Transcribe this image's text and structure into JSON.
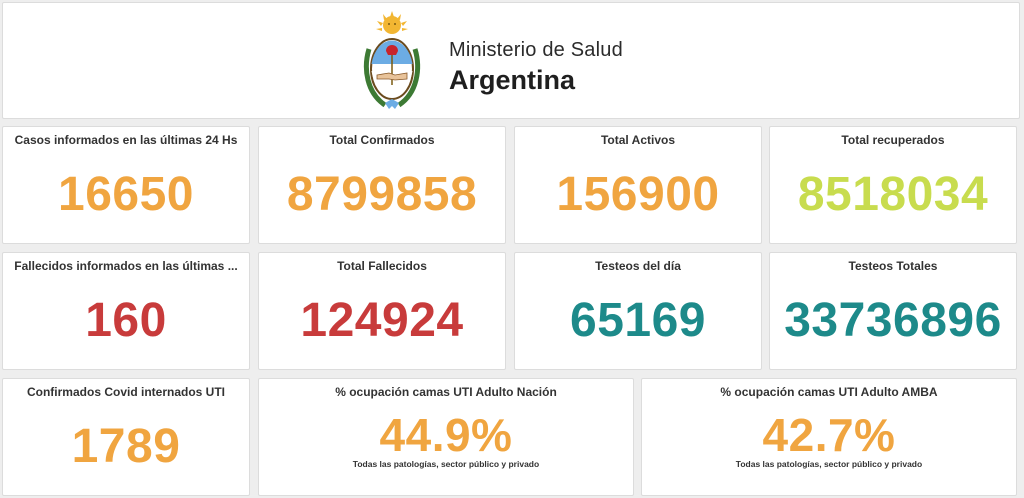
{
  "header": {
    "line1": "Ministerio de Salud",
    "line2": "Argentina",
    "logo_icon": "argentina-coat-of-arms-icon"
  },
  "colors": {
    "orange": "#f0a540",
    "lime": "#c8dc4e",
    "red": "#c83b3b",
    "teal": "#1d8a8a"
  },
  "row1": [
    {
      "label": "Casos informados en las últimas 24 Hs",
      "value": "16650",
      "color": "#f0a540"
    },
    {
      "label": "Total Confirmados",
      "value": "8799858",
      "color": "#f0a540"
    },
    {
      "label": "Total Activos",
      "value": "156900",
      "color": "#f0a540"
    },
    {
      "label": "Total recuperados",
      "value": "8518034",
      "color": "#c8dc4e"
    }
  ],
  "row2": [
    {
      "label": "Fallecidos informados en las últimas ...",
      "value": "160",
      "color": "#c83b3b"
    },
    {
      "label": "Total Fallecidos",
      "value": "124924",
      "color": "#c83b3b"
    },
    {
      "label": "Testeos del día",
      "value": "65169",
      "color": "#1d8a8a"
    },
    {
      "label": "Testeos Totales",
      "value": "33736896",
      "color": "#1d8a8a"
    }
  ],
  "row3": [
    {
      "label": "Confirmados Covid internados UTI",
      "value": "1789",
      "color": "#f0a540"
    },
    {
      "label": "% ocupación camas UTI Adulto Nación",
      "value": "44.9%",
      "sub": "Todas las patologías, sector público y privado",
      "color": "#f0a540"
    },
    {
      "label": "% ocupación camas UTI Adulto AMBA",
      "value": "42.7%",
      "sub": "Todas las patologías, sector público y privado",
      "color": "#f0a540"
    }
  ]
}
